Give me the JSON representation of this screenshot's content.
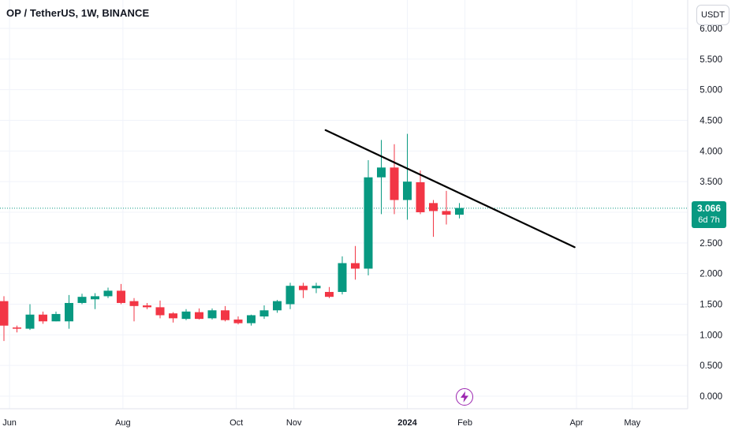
{
  "header": {
    "title": "OP / TetherUS, 1W, BINANCE",
    "currency": "USDT"
  },
  "price_badge": {
    "value": "3.066",
    "countdown": "6d 7h"
  },
  "colors": {
    "up": "#089981",
    "down": "#f23645",
    "grid": "#f0f3fa",
    "price_line": "#089981",
    "trendline": "#000000",
    "event": "#9c27b0"
  },
  "icons": {
    "event": "flash-icon"
  },
  "chart_data": {
    "type": "candlestick",
    "title": "OP / TetherUS, 1W, BINANCE",
    "xlabel": "",
    "ylabel": "",
    "ylim": [
      -0.1,
      6.3
    ],
    "y_ticks": [
      0.0,
      0.5,
      1.0,
      1.5,
      2.0,
      2.5,
      3.0,
      3.5,
      4.0,
      4.5,
      5.0,
      5.5
    ],
    "y_tick_labels": [
      "0.000",
      "0.500",
      "1.000",
      "1.500",
      "2.000",
      "2.500",
      "",
      "3.500",
      "4.000",
      "4.500",
      "5.000",
      "5.500"
    ],
    "x_range": [
      "2023-05-29",
      "2024-06-10"
    ],
    "x_ticks": [
      {
        "label": "Jun",
        "date": "2023-06-01",
        "bold": false
      },
      {
        "label": "Aug",
        "date": "2023-08-01",
        "bold": false
      },
      {
        "label": "Oct",
        "date": "2023-10-01",
        "bold": false
      },
      {
        "label": "Nov",
        "date": "2023-11-01",
        "bold": false
      },
      {
        "label": "2024",
        "date": "2024-01-01",
        "bold": true
      },
      {
        "label": "Feb",
        "date": "2024-02-01",
        "bold": false
      },
      {
        "label": "Apr",
        "date": "2024-04-01",
        "bold": false
      },
      {
        "label": "May",
        "date": "2024-05-01",
        "bold": false
      }
    ],
    "candles": [
      {
        "date": "2023-05-29",
        "o": 1.55,
        "h": 1.63,
        "l": 0.9,
        "c": 1.15
      },
      {
        "date": "2023-06-05",
        "o": 1.12,
        "h": 1.15,
        "l": 1.04,
        "c": 1.1
      },
      {
        "date": "2023-06-12",
        "o": 1.1,
        "h": 1.5,
        "l": 1.08,
        "c": 1.33
      },
      {
        "date": "2023-06-19",
        "o": 1.33,
        "h": 1.38,
        "l": 1.18,
        "c": 1.22
      },
      {
        "date": "2023-06-26",
        "o": 1.22,
        "h": 1.38,
        "l": 1.22,
        "c": 1.34
      },
      {
        "date": "2023-07-03",
        "o": 1.22,
        "h": 1.65,
        "l": 1.1,
        "c": 1.52
      },
      {
        "date": "2023-07-10",
        "o": 1.52,
        "h": 1.67,
        "l": 1.5,
        "c": 1.62
      },
      {
        "date": "2023-07-17",
        "o": 1.58,
        "h": 1.68,
        "l": 1.42,
        "c": 1.63
      },
      {
        "date": "2023-07-24",
        "o": 1.63,
        "h": 1.77,
        "l": 1.6,
        "c": 1.72
      },
      {
        "date": "2023-07-31",
        "o": 1.72,
        "h": 1.83,
        "l": 1.5,
        "c": 1.52
      },
      {
        "date": "2023-08-07",
        "o": 1.55,
        "h": 1.6,
        "l": 1.22,
        "c": 1.47
      },
      {
        "date": "2023-08-14",
        "o": 1.48,
        "h": 1.52,
        "l": 1.42,
        "c": 1.45
      },
      {
        "date": "2023-08-21",
        "o": 1.45,
        "h": 1.56,
        "l": 1.27,
        "c": 1.32
      },
      {
        "date": "2023-08-28",
        "o": 1.35,
        "h": 1.37,
        "l": 1.2,
        "c": 1.27
      },
      {
        "date": "2023-09-04",
        "o": 1.26,
        "h": 1.42,
        "l": 1.24,
        "c": 1.38
      },
      {
        "date": "2023-09-11",
        "o": 1.37,
        "h": 1.43,
        "l": 1.25,
        "c": 1.26
      },
      {
        "date": "2023-09-18",
        "o": 1.27,
        "h": 1.43,
        "l": 1.25,
        "c": 1.4
      },
      {
        "date": "2023-09-25",
        "o": 1.4,
        "h": 1.47,
        "l": 1.22,
        "c": 1.24
      },
      {
        "date": "2023-10-02",
        "o": 1.25,
        "h": 1.3,
        "l": 1.17,
        "c": 1.19
      },
      {
        "date": "2023-10-09",
        "o": 1.19,
        "h": 1.33,
        "l": 1.15,
        "c": 1.32
      },
      {
        "date": "2023-10-16",
        "o": 1.3,
        "h": 1.48,
        "l": 1.26,
        "c": 1.4
      },
      {
        "date": "2023-10-23",
        "o": 1.4,
        "h": 1.57,
        "l": 1.36,
        "c": 1.55
      },
      {
        "date": "2023-10-30",
        "o": 1.5,
        "h": 1.85,
        "l": 1.42,
        "c": 1.8
      },
      {
        "date": "2023-11-06",
        "o": 1.8,
        "h": 1.85,
        "l": 1.6,
        "c": 1.73
      },
      {
        "date": "2023-11-13",
        "o": 1.76,
        "h": 1.85,
        "l": 1.68,
        "c": 1.8
      },
      {
        "date": "2023-11-20",
        "o": 1.7,
        "h": 1.78,
        "l": 1.6,
        "c": 1.62
      },
      {
        "date": "2023-11-27",
        "o": 1.7,
        "h": 2.28,
        "l": 1.66,
        "c": 2.17
      },
      {
        "date": "2023-12-04",
        "o": 2.17,
        "h": 2.45,
        "l": 1.9,
        "c": 2.08
      },
      {
        "date": "2023-12-11",
        "o": 2.08,
        "h": 3.85,
        "l": 1.97,
        "c": 3.57
      },
      {
        "date": "2023-12-18",
        "o": 3.57,
        "h": 4.18,
        "l": 2.97,
        "c": 3.73
      },
      {
        "date": "2023-12-25",
        "o": 3.73,
        "h": 4.11,
        "l": 2.97,
        "c": 3.2
      },
      {
        "date": "2024-01-01",
        "o": 3.2,
        "h": 4.28,
        "l": 2.88,
        "c": 3.5
      },
      {
        "date": "2024-01-08",
        "o": 3.49,
        "h": 3.68,
        "l": 2.97,
        "c": 3.0
      },
      {
        "date": "2024-01-15",
        "o": 3.15,
        "h": 3.2,
        "l": 2.6,
        "c": 3.02
      },
      {
        "date": "2024-01-22",
        "o": 3.02,
        "h": 3.35,
        "l": 2.8,
        "c": 2.96
      },
      {
        "date": "2024-01-29",
        "o": 2.96,
        "h": 3.15,
        "l": 2.9,
        "c": 3.07
      }
    ],
    "last_price": 3.066,
    "trendline": {
      "from": {
        "date": "2023-11-18",
        "price": 4.34
      },
      "to": {
        "date": "2024-03-31",
        "price": 2.43
      }
    },
    "grid": true
  }
}
